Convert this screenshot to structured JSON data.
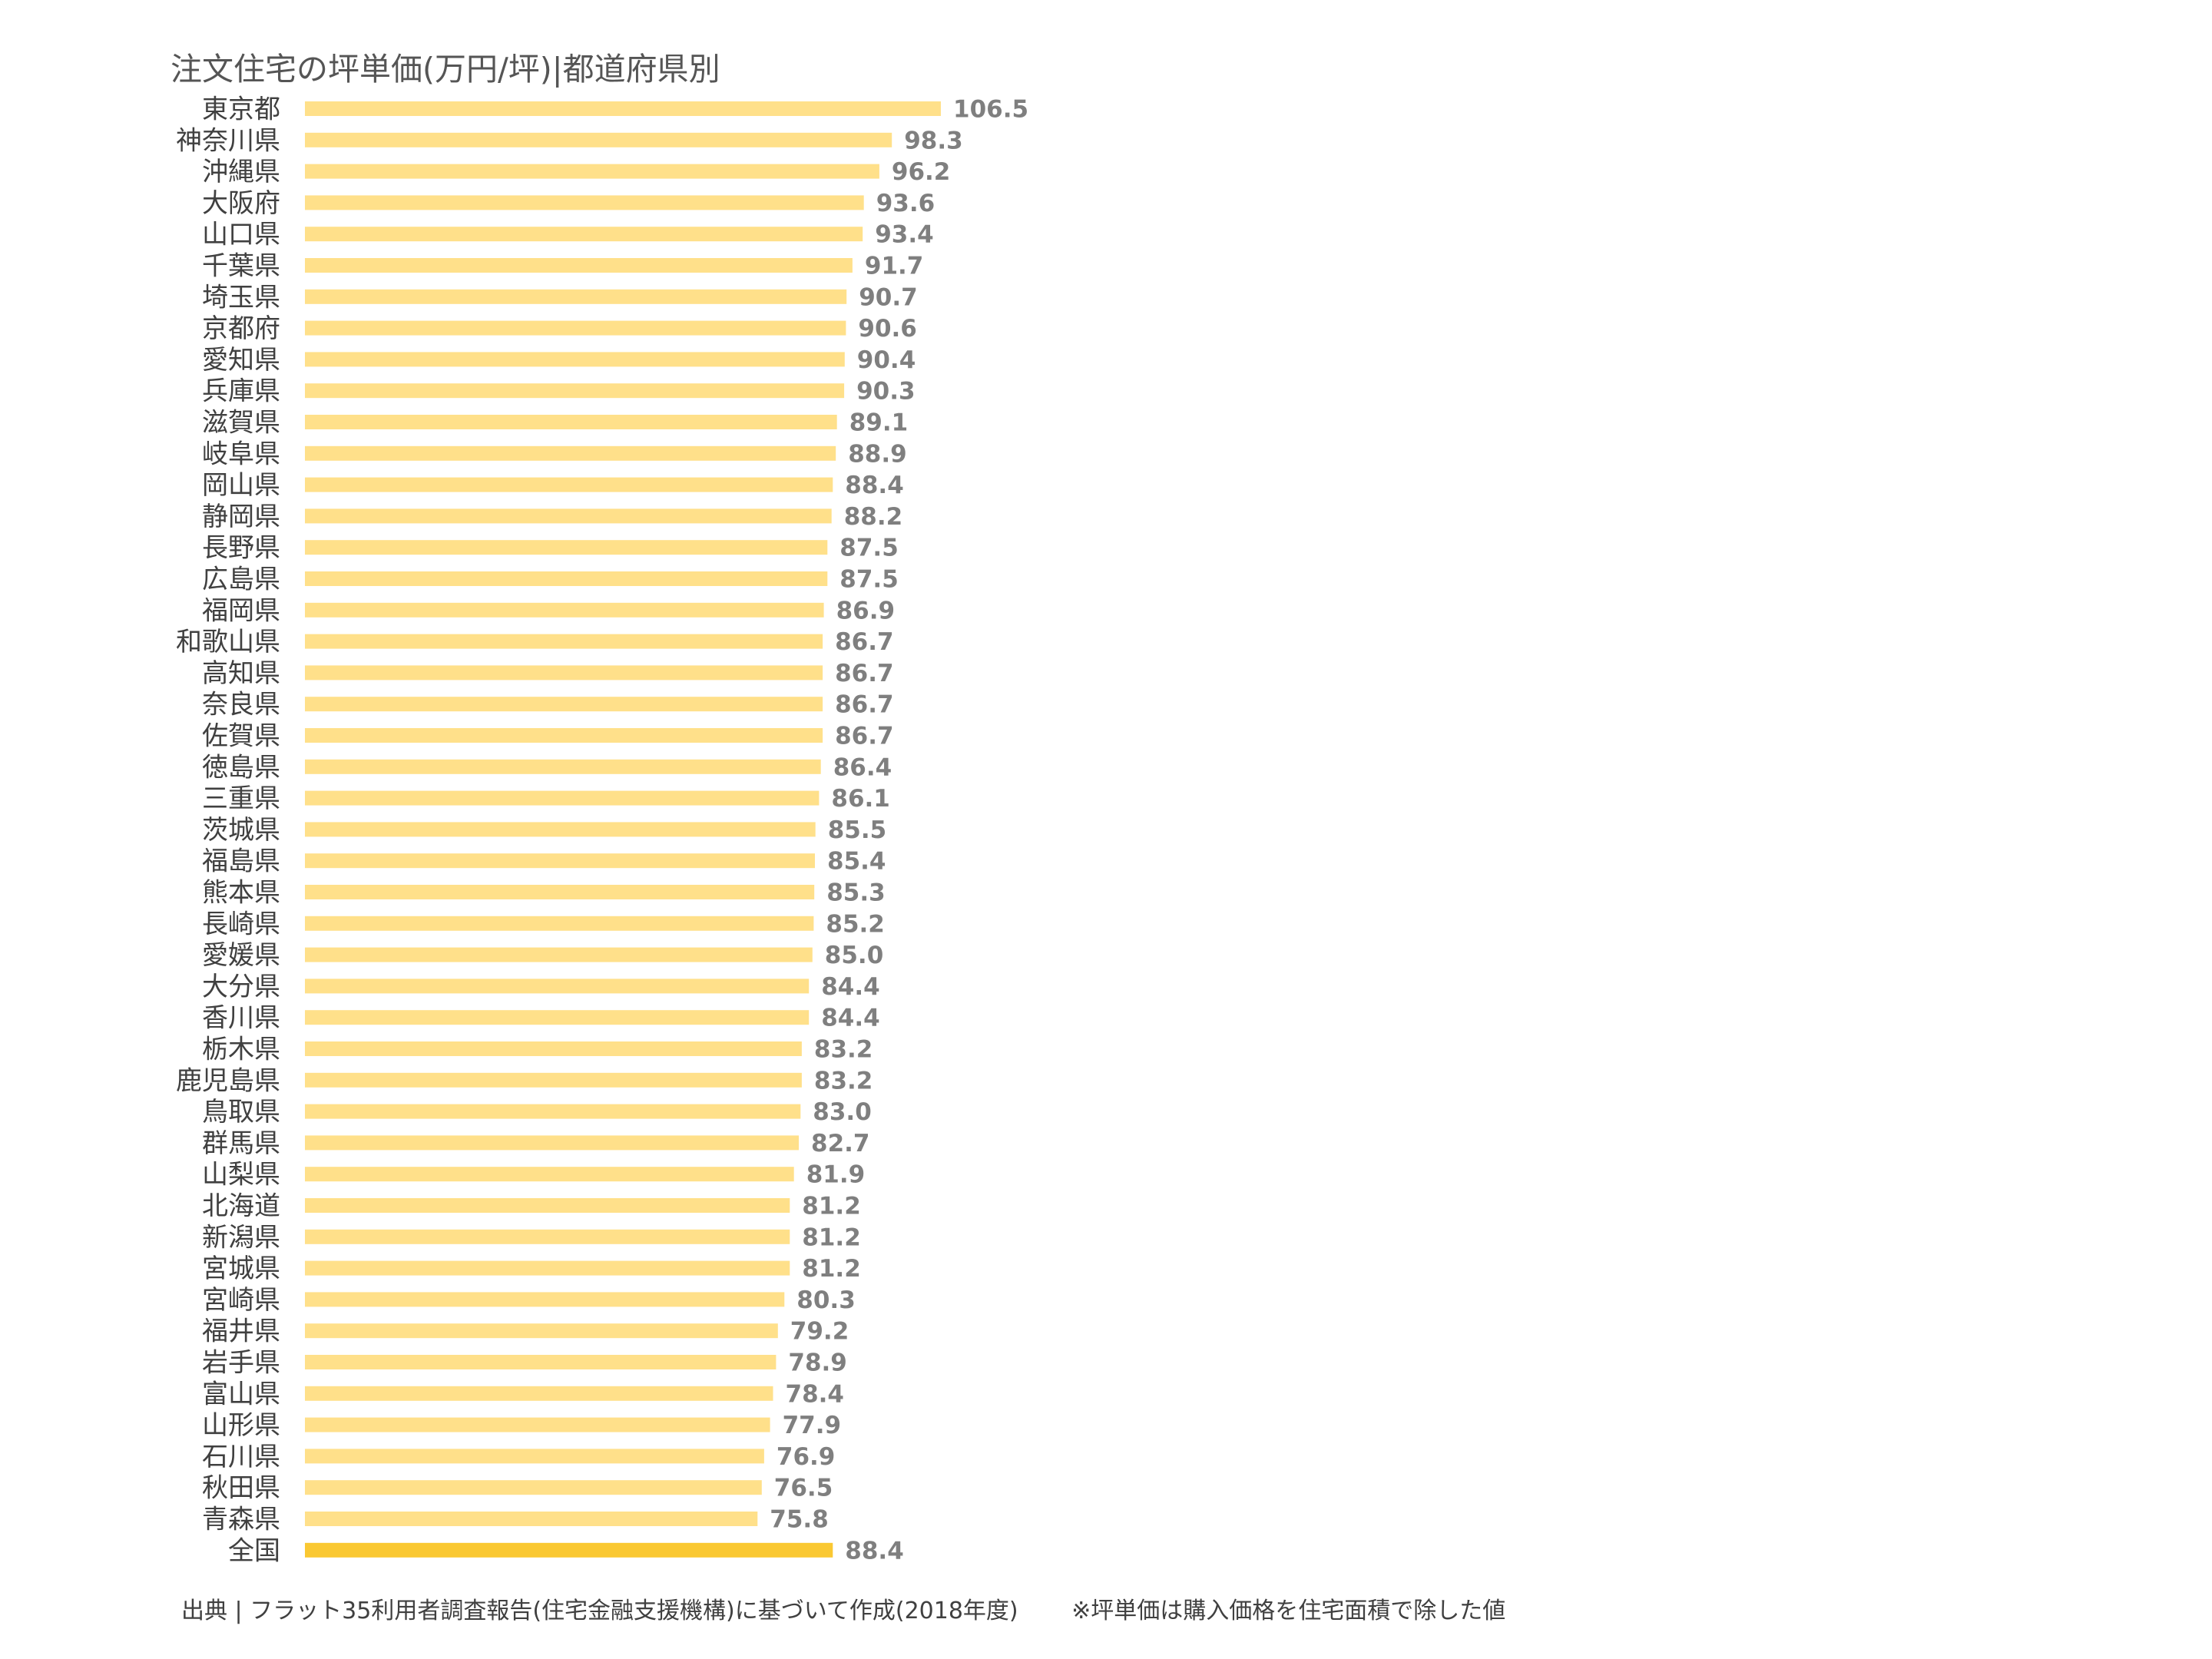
{
  "chart_data": {
    "type": "bar",
    "orientation": "horizontal",
    "title": "注文住宅の坪単価(万円/坪)|都道府県別",
    "categories": [
      "東京都",
      "神奈川県",
      "沖縄県",
      "大阪府",
      "山口県",
      "千葉県",
      "埼玉県",
      "京都府",
      "愛知県",
      "兵庫県",
      "滋賀県",
      "岐阜県",
      "岡山県",
      "静岡県",
      "長野県",
      "広島県",
      "福岡県",
      "和歌山県",
      "高知県",
      "奈良県",
      "佐賀県",
      "徳島県",
      "三重県",
      "茨城県",
      "福島県",
      "熊本県",
      "長崎県",
      "愛媛県",
      "大分県",
      "香川県",
      "栃木県",
      "鹿児島県",
      "鳥取県",
      "群馬県",
      "山梨県",
      "北海道",
      "新潟県",
      "宮城県",
      "宮崎県",
      "福井県",
      "岩手県",
      "富山県",
      "山形県",
      "石川県",
      "秋田県",
      "青森県",
      "全国"
    ],
    "values": [
      106.5,
      98.3,
      96.2,
      93.6,
      93.4,
      91.7,
      90.7,
      90.6,
      90.4,
      90.3,
      89.1,
      88.9,
      88.4,
      88.2,
      87.5,
      87.5,
      86.9,
      86.7,
      86.7,
      86.7,
      86.7,
      86.4,
      86.1,
      85.5,
      85.4,
      85.3,
      85.2,
      85.0,
      84.4,
      84.4,
      83.2,
      83.2,
      83.0,
      82.7,
      81.9,
      81.2,
      81.2,
      81.2,
      80.3,
      79.2,
      78.9,
      78.4,
      77.9,
      76.9,
      76.5,
      75.8,
      88.4
    ],
    "value_labels": [
      "106.5",
      "98.3",
      "96.2",
      "93.6",
      "93.4",
      "91.7",
      "90.7",
      "90.6",
      "90.4",
      "90.3",
      "89.1",
      "88.9",
      "88.4",
      "88.2",
      "87.5",
      "87.5",
      "86.9",
      "86.7",
      "86.7",
      "86.7",
      "86.7",
      "86.4",
      "86.1",
      "85.5",
      "85.4",
      "85.3",
      "85.2",
      "85.0",
      "84.4",
      "84.4",
      "83.2",
      "83.2",
      "83.0",
      "82.7",
      "81.9",
      "81.2",
      "81.2",
      "81.2",
      "80.3",
      "79.2",
      "78.9",
      "78.4",
      "77.9",
      "76.9",
      "76.5",
      "75.8",
      "88.4"
    ],
    "highlight_category": "全国",
    "xlim": [
      0,
      106.5
    ],
    "grid": false,
    "legend": "none",
    "colors": {
      "bar": "#ffe08a",
      "highlight": "#fac832",
      "value_label": "#7f7f7f",
      "category_label": "#404040"
    }
  },
  "footer": {
    "source": "出典 | フラット35利用者調査報告(住宅金融支援機構)に基づいて作成(2018年度)",
    "note": "※坪単価は購入価格を住宅面積で除した値"
  }
}
